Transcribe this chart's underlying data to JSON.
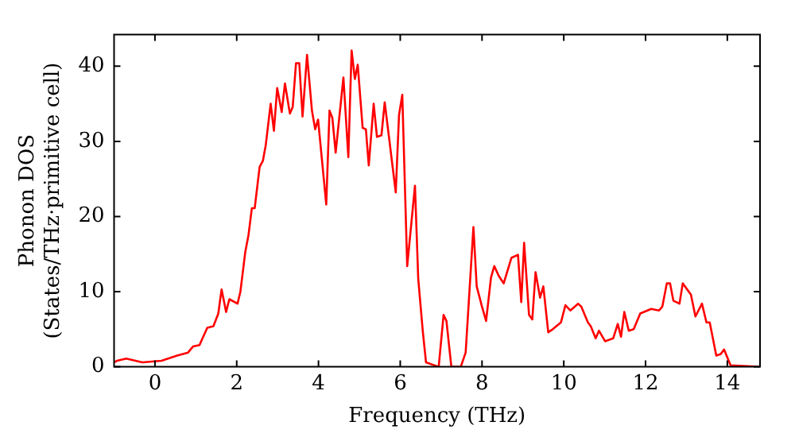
{
  "chart_data": {
    "type": "line",
    "xlabel": "Frequency (THz)",
    "ylabel": "Phonon DOS\n(States/THz·primitive cell)",
    "xlim": [
      -1,
      14.8
    ],
    "ylim": [
      0,
      44.2
    ],
    "xticks": [
      0,
      2,
      4,
      6,
      8,
      10,
      12,
      14
    ],
    "yticks": [
      0,
      10,
      20,
      30,
      40
    ],
    "grid": false,
    "legend": false,
    "marker": "none",
    "line_style": "solid",
    "series": [
      {
        "color": "#ff0000",
        "x": [
          -1,
          -0.93,
          -0.7,
          -0.31,
          0.16,
          0.54,
          0.81,
          0.93,
          1.09,
          1.28,
          1.43,
          1.55,
          1.63,
          1.74,
          1.82,
          2.02,
          2.09,
          2.21,
          2.29,
          2.37,
          2.44,
          2.56,
          2.64,
          2.71,
          2.83,
          2.91,
          2.99,
          3.1,
          3.18,
          3.3,
          3.37,
          3.45,
          3.53,
          3.61,
          3.72,
          3.84,
          3.92,
          3.99,
          4.19,
          4.27,
          4.34,
          4.42,
          4.61,
          4.73,
          4.81,
          4.89,
          4.96,
          5.08,
          5.16,
          5.23,
          5.35,
          5.43,
          5.54,
          5.62,
          5.89,
          5.97,
          6.05,
          6.17,
          6.36,
          6.44,
          6.55,
          6.63,
          6.94,
          7.06,
          7.13,
          7.25,
          7.48,
          7.6,
          7.79,
          7.87,
          7.99,
          8.1,
          8.22,
          8.3,
          8.41,
          8.53,
          8.72,
          8.88,
          8.96,
          9.03,
          9.15,
          9.23,
          9.31,
          9.42,
          9.5,
          9.62,
          9.73,
          9.93,
          10.04,
          10.16,
          10.35,
          10.43,
          10.59,
          10.66,
          10.78,
          10.86,
          11.01,
          11.21,
          11.32,
          11.4,
          11.48,
          11.59,
          11.71,
          11.87,
          12.14,
          12.33,
          12.41,
          12.52,
          12.6,
          12.68,
          12.83,
          12.91,
          13.11,
          13.22,
          13.38,
          13.49,
          13.57,
          13.73,
          13.84,
          13.92,
          14.08,
          14.8
        ],
        "values": [
          0.6,
          0.8,
          1.1,
          0.6,
          0.8,
          1.5,
          1.9,
          2.7,
          2.9,
          5.2,
          5.4,
          7.1,
          10.3,
          7.3,
          9,
          8.4,
          10,
          15.3,
          17.6,
          21.1,
          21.1,
          26.6,
          27.4,
          29.5,
          35,
          31.4,
          37.1,
          33.9,
          37.7,
          33.7,
          34.6,
          40.4,
          40.4,
          33.3,
          41.5,
          34.1,
          31.6,
          32.9,
          21.6,
          34.1,
          33.1,
          28.5,
          38.5,
          27.9,
          42.1,
          38.3,
          40.2,
          31.8,
          31.6,
          26.8,
          35,
          30.6,
          30.8,
          35.2,
          23.2,
          33.5,
          36.2,
          13.4,
          24.1,
          11.7,
          4.8,
          0.6,
          0,
          6.9,
          6.1,
          0,
          0,
          1.9,
          18.6,
          10.7,
          8.2,
          6.1,
          11.9,
          13.4,
          12.1,
          11.1,
          14.5,
          14.9,
          8.6,
          16.5,
          6.9,
          6.3,
          12.6,
          9.2,
          10.7,
          4.6,
          5,
          5.9,
          8.2,
          7.5,
          8.4,
          8,
          5.9,
          5.4,
          3.8,
          4.8,
          3.4,
          3.8,
          5.7,
          4,
          7.3,
          4.8,
          5,
          7.1,
          7.7,
          7.5,
          8,
          11.1,
          11.1,
          8.8,
          8.4,
          11.1,
          9.6,
          6.7,
          8.4,
          5.9,
          5.9,
          1.5,
          1.7,
          2.3,
          0.2,
          0
        ]
      }
    ]
  }
}
